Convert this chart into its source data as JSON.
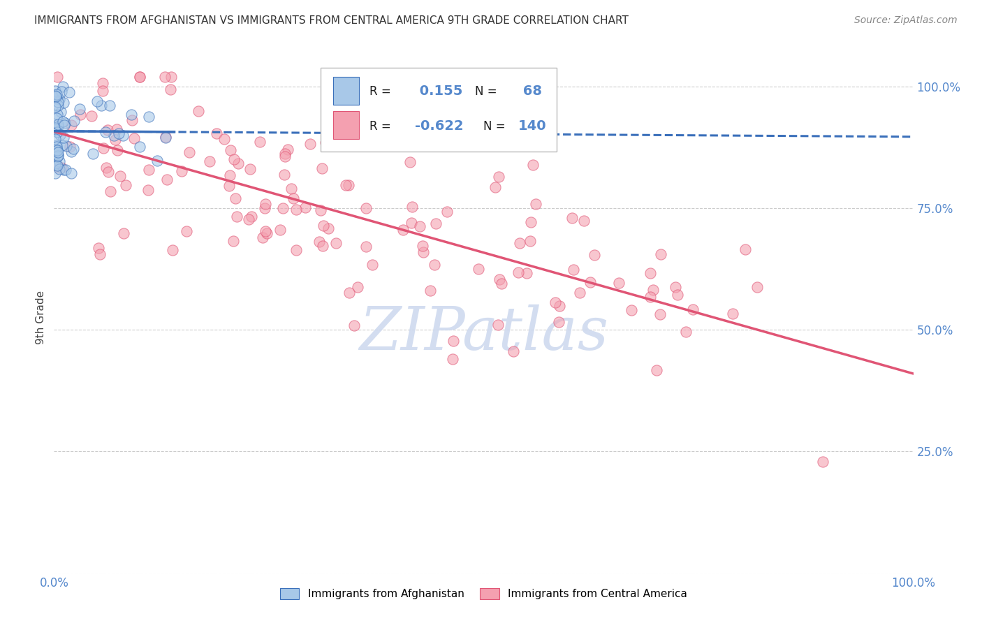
{
  "title": "IMMIGRANTS FROM AFGHANISTAN VS IMMIGRANTS FROM CENTRAL AMERICA 9TH GRADE CORRELATION CHART",
  "source": "Source: ZipAtlas.com",
  "ylabel": "9th Grade",
  "color_afghanistan": "#a8c8e8",
  "color_central_america": "#f4a0b0",
  "trendline_color_afghanistan": "#3a6fba",
  "trendline_color_central_america": "#e05575",
  "background_color": "#ffffff",
  "watermark_text": "ZIPatlas",
  "watermark_color": "#ccd8ee",
  "tick_color": "#5588cc",
  "grid_color": "#cccccc",
  "legend_R1": " 0.155",
  "legend_N1": " 68",
  "legend_R2": "-0.622",
  "legend_N2": "140",
  "label_afg": "Immigrants from Afghanistan",
  "label_ca": "Immigrants from Central America"
}
